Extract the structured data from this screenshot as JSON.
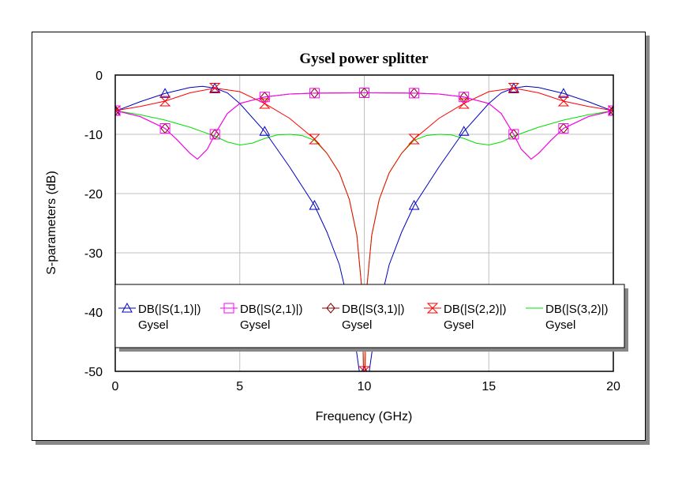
{
  "chart_data": {
    "type": "line",
    "title": "Gysel power splitter",
    "xlabel": "Frequency (GHz)",
    "ylabel": "S-parameters (dB)",
    "xlim": [
      0,
      20
    ],
    "ylim": [
      -50,
      0
    ],
    "xticks": [
      "0",
      "5",
      "10",
      "15",
      "20"
    ],
    "yticks": [
      "0",
      "-10",
      "-20",
      "-30",
      "-40",
      "-50"
    ],
    "grid": true,
    "legend_placement": "bottom",
    "marker_x": [
      0,
      2,
      4,
      6,
      8,
      10,
      12,
      14,
      16,
      18,
      20
    ],
    "series": [
      {
        "name": "DB(|S(1,1)|)",
        "sub": "Gysel",
        "color": "#0000c0",
        "marker": "triangle",
        "x": [
          0,
          1,
          2,
          3,
          3.5,
          4,
          4.5,
          5,
          6,
          7,
          8,
          8.5,
          9,
          9.5,
          9.8,
          10.2,
          10.5,
          11,
          11.5,
          12,
          13,
          14,
          15,
          15.5,
          16,
          16.5,
          17,
          18,
          19,
          20
        ],
        "y": [
          -6.1,
          -4.5,
          -3.1,
          -2.1,
          -1.9,
          -2.2,
          -3,
          -4.8,
          -9.5,
          -15.5,
          -22,
          -26.5,
          -32,
          -41,
          -50,
          -50,
          -41,
          -32,
          -26.5,
          -22,
          -15.5,
          -9.5,
          -4.8,
          -3,
          -2.2,
          -1.9,
          -2.1,
          -3.1,
          -4.5,
          -6.1
        ]
      },
      {
        "name": "DB(|S(2,1)|)",
        "sub": "Gysel",
        "color": "#ff00ff",
        "marker": "square",
        "x": [
          0,
          1,
          2,
          2.5,
          3,
          3.3,
          3.7,
          4,
          4.5,
          5,
          6,
          7,
          8,
          10,
          12,
          13,
          14,
          15,
          15.5,
          16,
          16.3,
          16.7,
          17,
          17.5,
          18,
          19,
          20
        ],
        "y": [
          -6,
          -7,
          -9,
          -11,
          -13.2,
          -14.2,
          -12.5,
          -10,
          -6.5,
          -4.8,
          -3.7,
          -3.2,
          -3.05,
          -3,
          -3.05,
          -3.2,
          -3.7,
          -4.8,
          -6.5,
          -10,
          -12.5,
          -14.2,
          -13.2,
          -11,
          -9,
          -7,
          -6
        ]
      },
      {
        "name": "DB(|S(3,1)|)",
        "sub": "Gysel",
        "color": "#800000",
        "marker": "diamond",
        "x": [
          0,
          1,
          2,
          2.5,
          3,
          3.3,
          3.7,
          4,
          4.5,
          5,
          6,
          7,
          8,
          10,
          12,
          13,
          14,
          15,
          15.5,
          16,
          16.3,
          16.7,
          17,
          17.5,
          18,
          19,
          20
        ],
        "y": [
          -6,
          -7,
          -9,
          -11,
          -13.2,
          -14.2,
          -12.5,
          -10,
          -6.5,
          -4.8,
          -3.7,
          -3.2,
          -3.05,
          -3,
          -3.05,
          -3.2,
          -3.7,
          -4.8,
          -6.5,
          -10,
          -12.5,
          -14.2,
          -13.2,
          -11,
          -9,
          -7,
          -6
        ]
      },
      {
        "name": "DB(|S(2,2)|)",
        "sub": "Gysel",
        "color": "#ff0000",
        "marker": "hourglass",
        "x": [
          0,
          1,
          2,
          3,
          4,
          5,
          6,
          7,
          8,
          8.5,
          9,
          9.4,
          9.7,
          9.9,
          9.97,
          10.03,
          10.1,
          10.3,
          10.6,
          11,
          11.5,
          12,
          13,
          14,
          15,
          16,
          17,
          18,
          19,
          20
        ],
        "y": [
          -6,
          -5.3,
          -4.4,
          -3,
          -2.2,
          -2.8,
          -4.8,
          -7.3,
          -10.8,
          -13.2,
          -16.5,
          -21,
          -27,
          -36,
          -50,
          -50,
          -36,
          -27,
          -21,
          -16.5,
          -13.2,
          -10.8,
          -7.3,
          -4.8,
          -2.8,
          -2.2,
          -3,
          -4.4,
          -5.3,
          -6
        ]
      },
      {
        "name": "DB(|S(3,2)|)",
        "sub": "Gysel",
        "color": "#00e000",
        "marker": "none",
        "x": [
          0,
          1,
          2,
          3,
          4,
          4.5,
          5,
          5.5,
          6,
          6.5,
          7,
          7.5,
          8,
          8.5,
          9,
          9.4,
          9.7,
          9.9,
          9.97,
          10.03,
          10.1,
          10.3,
          10.6,
          11,
          11.5,
          12,
          12.5,
          13,
          13.5,
          14,
          14.5,
          15,
          15.5,
          16,
          17,
          18,
          19,
          20
        ],
        "y": [
          -6,
          -6.7,
          -7.6,
          -8.8,
          -10.3,
          -11.3,
          -11.8,
          -11.5,
          -10.7,
          -10.1,
          -10,
          -10.2,
          -11,
          -13.2,
          -16.5,
          -21,
          -27,
          -36,
          -50,
          -50,
          -36,
          -27,
          -21,
          -16.5,
          -13.2,
          -11,
          -10.2,
          -10,
          -10.1,
          -10.7,
          -11.5,
          -11.8,
          -11.3,
          -10.3,
          -8.8,
          -7.6,
          -6.7,
          -6
        ]
      }
    ]
  }
}
